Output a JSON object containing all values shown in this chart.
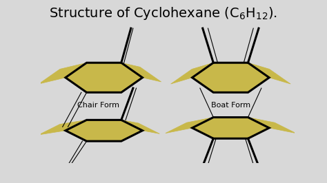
{
  "bg_color": "#d8d8d8",
  "gold_color": "#c8b84a",
  "gold_edge": "#a89830",
  "black_lw_thick": 2.2,
  "black_lw_thin": 0.8,
  "chair_label": "Chair Form",
  "boat_label": "Boat Form",
  "label_fontsize": 8,
  "title_fontsize": 14
}
